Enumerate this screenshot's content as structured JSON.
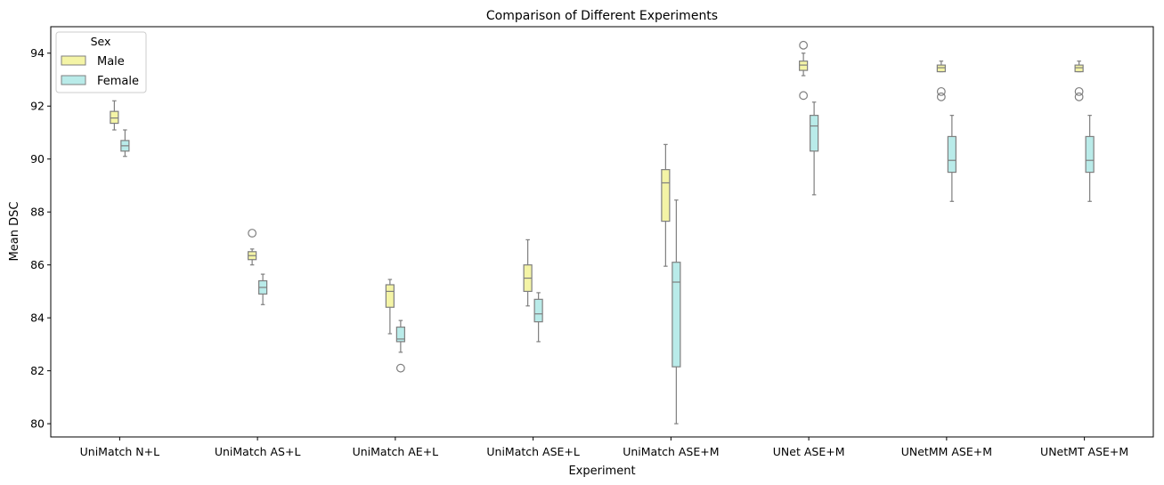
{
  "chart_data": {
    "type": "box",
    "title": "Comparison of Different Experiments",
    "xlabel": "Experiment",
    "ylabel": "Mean DSC",
    "ylim": [
      79.5,
      95
    ],
    "yticks": [
      80,
      82,
      84,
      86,
      88,
      90,
      92,
      94
    ],
    "grid": false,
    "legend": {
      "title": "Sex",
      "position": "top-left"
    },
    "categories": [
      "UniMatch N+L",
      "UniMatch AS+L",
      "UniMatch AE+L",
      "UniMatch ASE+L",
      "UniMatch ASE+M",
      "UNet ASE+M",
      "UNetMM ASE+M",
      "UNetMT ASE+M"
    ],
    "series": [
      {
        "name": "Male",
        "color": "#f4f4a6",
        "boxes": [
          {
            "whislo": 91.1,
            "q1": 91.35,
            "med": 91.55,
            "q3": 91.8,
            "whishi": 92.2,
            "fliers": []
          },
          {
            "whislo": 86.0,
            "q1": 86.2,
            "med": 86.35,
            "q3": 86.5,
            "whishi": 86.6,
            "fliers": [
              87.2
            ]
          },
          {
            "whislo": 83.4,
            "q1": 84.4,
            "med": 85.0,
            "q3": 85.25,
            "whishi": 85.45,
            "fliers": []
          },
          {
            "whislo": 84.45,
            "q1": 85.0,
            "med": 85.5,
            "q3": 86.0,
            "whishi": 86.95,
            "fliers": []
          },
          {
            "whislo": 85.95,
            "q1": 87.65,
            "med": 89.1,
            "q3": 89.6,
            "whishi": 90.55,
            "fliers": []
          },
          {
            "whislo": 93.15,
            "q1": 93.35,
            "med": 93.55,
            "q3": 93.7,
            "whishi": 94.0,
            "fliers": [
              94.3,
              92.4
            ]
          },
          {
            "whislo": 93.3,
            "q1": 93.3,
            "med": 93.45,
            "q3": 93.55,
            "whishi": 93.7,
            "fliers": [
              92.55,
              92.35
            ]
          },
          {
            "whislo": 93.3,
            "q1": 93.3,
            "med": 93.45,
            "q3": 93.55,
            "whishi": 93.7,
            "fliers": [
              92.55,
              92.35
            ]
          }
        ]
      },
      {
        "name": "Female",
        "color": "#b9ebe9",
        "boxes": [
          {
            "whislo": 90.1,
            "q1": 90.3,
            "med": 90.5,
            "q3": 90.7,
            "whishi": 91.1,
            "fliers": []
          },
          {
            "whislo": 84.5,
            "q1": 84.9,
            "med": 85.15,
            "q3": 85.4,
            "whishi": 85.65,
            "fliers": []
          },
          {
            "whislo": 82.7,
            "q1": 83.1,
            "med": 83.2,
            "q3": 83.65,
            "whishi": 83.9,
            "fliers": [
              82.1
            ]
          },
          {
            "whislo": 83.1,
            "q1": 83.85,
            "med": 84.15,
            "q3": 84.7,
            "whishi": 84.95,
            "fliers": []
          },
          {
            "whislo": 80.0,
            "q1": 82.15,
            "med": 85.35,
            "q3": 86.1,
            "whishi": 88.45,
            "fliers": []
          },
          {
            "whislo": 88.65,
            "q1": 90.3,
            "med": 91.25,
            "q3": 91.65,
            "whishi": 92.15,
            "fliers": []
          },
          {
            "whislo": 88.4,
            "q1": 89.5,
            "med": 89.95,
            "q3": 90.85,
            "whishi": 91.65,
            "fliers": []
          },
          {
            "whislo": 88.4,
            "q1": 89.5,
            "med": 89.95,
            "q3": 90.85,
            "whishi": 91.65,
            "fliers": []
          }
        ]
      }
    ]
  }
}
